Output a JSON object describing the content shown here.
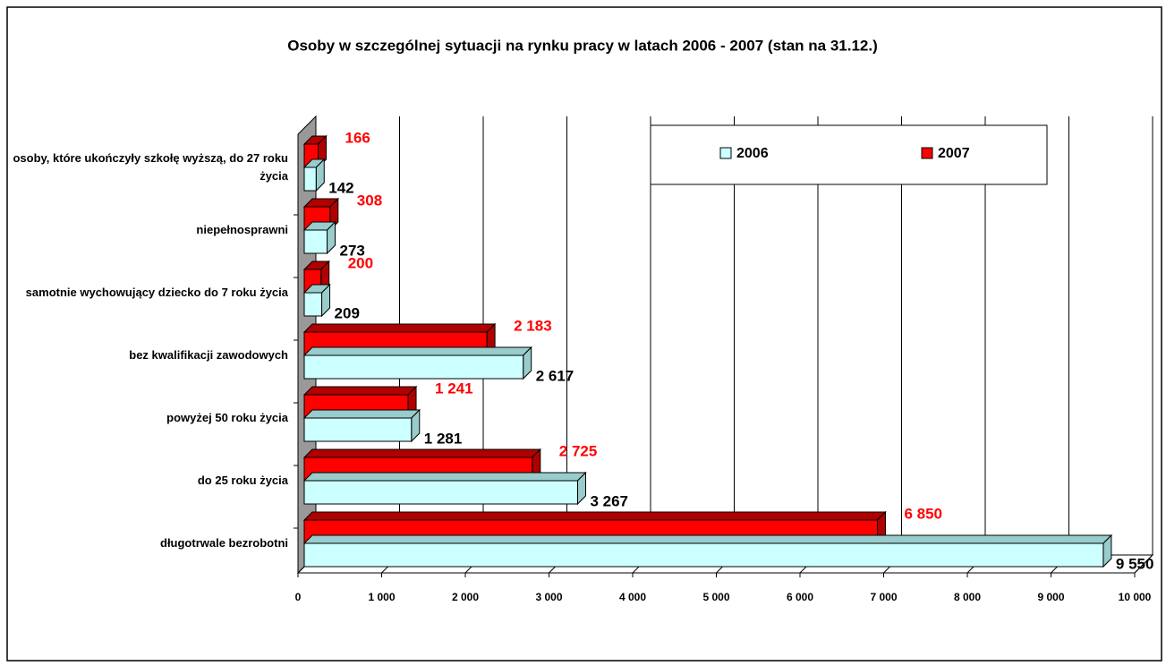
{
  "chart_data": {
    "type": "bar",
    "orientation": "horizontal",
    "title": "Osoby w szczególnej sytuacji na rynku pracy w latach 2006 - 2007 (stan na 31.12.)",
    "categories": [
      "osoby, które ukończyły szkołę wyższą, do 27 roku życia",
      "niepełnosprawni",
      "samotnie wychowujący dziecko do 7 roku życia",
      "bez kwalifikacji zawodowych",
      "powyżej 50 roku życia",
      "do 25 roku życia",
      "długotrwale bezrobotni"
    ],
    "series": [
      {
        "name": "2006",
        "color": "#ccffff",
        "label_color": "#000000",
        "values": [
          142,
          273,
          209,
          2617,
          1281,
          3267,
          9550
        ],
        "value_labels": [
          "142",
          "273",
          "209",
          "2 617",
          "1 281",
          "3 267",
          "9 550"
        ]
      },
      {
        "name": "2007",
        "color": "#ff0000",
        "label_color": "#ff0000",
        "values": [
          166,
          308,
          200,
          2183,
          1241,
          2725,
          6850
        ],
        "value_labels": [
          "166",
          "308",
          "200",
          "2 183",
          "1 241",
          "2 725",
          "6 850"
        ]
      }
    ],
    "xlim": [
      0,
      10000
    ],
    "xticks": [
      0,
      {
        "value": 1000,
        "label": "1 000"
      },
      {
        "value": 2000,
        "label": "2 000"
      },
      {
        "value": 3000,
        "label": "3 000"
      },
      {
        "value": 4000,
        "label": "4 000"
      },
      {
        "value": 5000,
        "label": "5 000"
      },
      {
        "value": 6000,
        "label": "6 000"
      },
      {
        "value": 7000,
        "label": "7 000"
      },
      {
        "value": 8000,
        "label": "8 000"
      },
      {
        "value": 9000,
        "label": "9 000"
      },
      {
        "value": 10000,
        "label": "10 000"
      }
    ],
    "grid": true
  }
}
